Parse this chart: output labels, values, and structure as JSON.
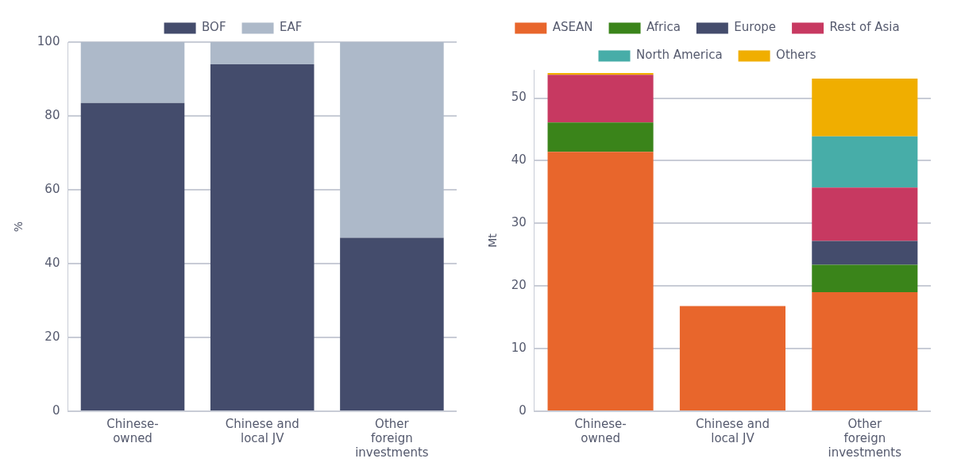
{
  "chart_data": [
    {
      "type": "bar",
      "stacked": true,
      "ylabel": "%",
      "categories": [
        "Chinese-owned",
        "Chinese and local JV",
        "Other foreign investments"
      ],
      "ylim": [
        0,
        100
      ],
      "yticks": [
        0,
        20,
        40,
        60,
        80,
        100
      ],
      "grid": "y",
      "legend": "top",
      "series": [
        {
          "name": "BOF",
          "color": "#444c6c",
          "values": [
            83.5,
            94,
            47
          ]
        },
        {
          "name": "EAF",
          "color": "#adb9c9",
          "values": [
            16.5,
            6,
            53
          ]
        }
      ]
    },
    {
      "type": "bar",
      "stacked": true,
      "ylabel": "Mt",
      "categories": [
        "Chinese-owned",
        "Chinese and local JV",
        "Other foreign investments"
      ],
      "ylim": [
        0,
        54.5
      ],
      "yticks": [
        0,
        10,
        20,
        30,
        40,
        50
      ],
      "grid": "y",
      "legend": "top",
      "series": [
        {
          "name": "ASEAN",
          "color": "#e8662c",
          "values": [
            41.4,
            16.8,
            19.0
          ]
        },
        {
          "name": "Africa",
          "color": "#3a841a",
          "values": [
            4.7,
            0,
            4.4
          ]
        },
        {
          "name": "Europe",
          "color": "#444c6c",
          "values": [
            0,
            0,
            3.8
          ]
        },
        {
          "name": "Rest of Asia",
          "color": "#c73961",
          "values": [
            7.6,
            0,
            8.5
          ]
        },
        {
          "name": "North America",
          "color": "#47ada8",
          "values": [
            0,
            0,
            8.2
          ]
        },
        {
          "name": "Others",
          "color": "#f0ae00",
          "values": [
            0.3,
            0,
            9.2
          ]
        }
      ]
    }
  ]
}
